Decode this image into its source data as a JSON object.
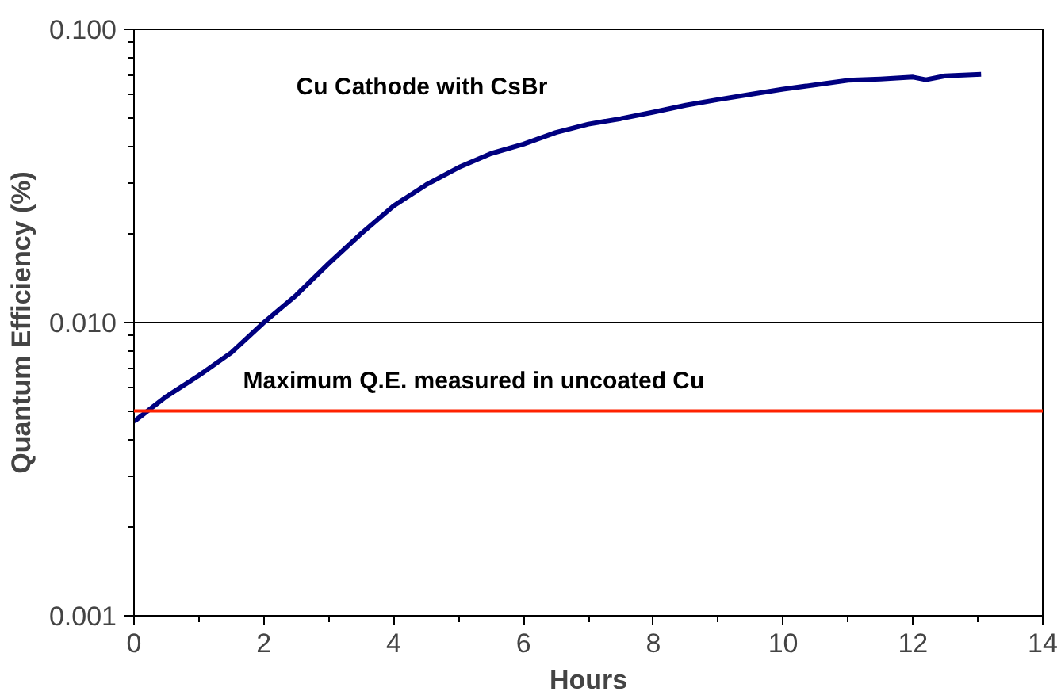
{
  "chart_data": {
    "type": "line",
    "xlabel": "Hours",
    "ylabel": "Quantum Efficiency (%)",
    "log": "y",
    "grid": "y",
    "legend": false,
    "xlim": [
      0,
      14
    ],
    "xticks": [
      0,
      2,
      4,
      6,
      8,
      10,
      12,
      14
    ],
    "ylim": [
      0.001,
      0.1
    ],
    "yticks": [
      {
        "value": 0.001,
        "label": "0.001"
      },
      {
        "value": 0.01,
        "label": "0.010"
      },
      {
        "value": 0.1,
        "label": "0.100"
      }
    ],
    "series": [
      {
        "name": "Cu Cathode with CsBr",
        "color": "#000080",
        "x": [
          0,
          0.5,
          1,
          1.5,
          2,
          2.5,
          3,
          3.5,
          4,
          4.5,
          5,
          5.5,
          6,
          6.5,
          7,
          7.5,
          8,
          8.5,
          9,
          9.5,
          10,
          10.5,
          11,
          11.5,
          12,
          12.2,
          12.5,
          13.05
        ],
        "values": [
          0.0046,
          0.0056,
          0.0066,
          0.0079,
          0.01,
          0.0124,
          0.0159,
          0.0201,
          0.025,
          0.0295,
          0.0338,
          0.0377,
          0.0406,
          0.0445,
          0.0475,
          0.0496,
          0.0522,
          0.0551,
          0.0576,
          0.06,
          0.0625,
          0.0647,
          0.067,
          0.0677,
          0.0687,
          0.0673,
          0.0694,
          0.0702
        ]
      }
    ],
    "ref_lines": [
      {
        "axis": "y",
        "value": 0.005,
        "label": "Maximum Q.E. measured in uncoated Cu",
        "color": "#ff2200"
      }
    ]
  }
}
